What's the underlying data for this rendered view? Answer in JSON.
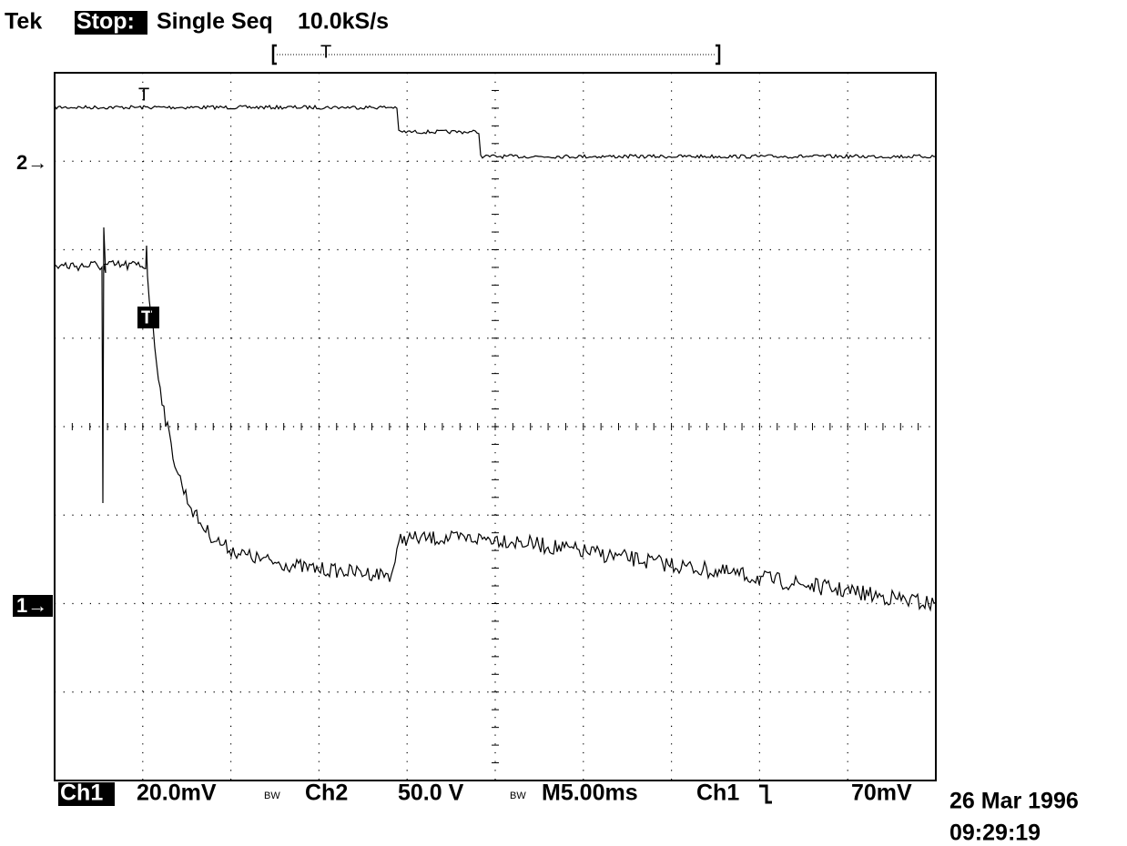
{
  "header": {
    "brand": "Tek",
    "state": "Stop:",
    "mode": "Single Seq",
    "sample_rate": "10.0kS/s"
  },
  "markers": {
    "ch2": "2→",
    "ch1": "1→",
    "trigger": "T"
  },
  "footer": {
    "ch1_label": "Ch1",
    "ch1_scale": "20.0mV",
    "bw": "BW",
    "ch2_label": "Ch2",
    "ch2_scale": "50.0 V",
    "timebase": "M5.00ms",
    "trigger_source": "Ch1",
    "trigger_level": "70mV",
    "date": "26 Mar 1996",
    "time": "09:29:19"
  }
}
